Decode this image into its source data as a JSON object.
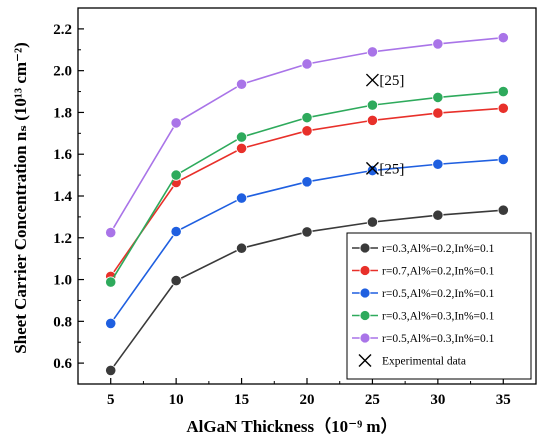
{
  "chart_data": {
    "type": "line",
    "x": [
      5,
      10,
      15,
      20,
      25,
      30,
      35
    ],
    "x_tick_labels": [
      "5",
      "10",
      "15",
      "20",
      "25",
      "30",
      "35"
    ],
    "y_tick_labels": [
      "0.6",
      "0.8",
      "1.0",
      "1.2",
      "1.4",
      "1.6",
      "1.8",
      "2.0",
      "2.2"
    ],
    "y_ticks": [
      0.6,
      0.8,
      1.0,
      1.2,
      1.4,
      1.6,
      1.8,
      2.0,
      2.2
    ],
    "xlim": [
      2.5,
      37.5
    ],
    "ylim": [
      0.5,
      2.3
    ],
    "xlabel": "AlGaN Thickness（10⁻⁹ m）",
    "ylabel": "Sheet Carrier Concentration nₛ (10¹³ cm⁻²)",
    "grid": false,
    "legend_placement": "bottom-right",
    "series": [
      {
        "name": "r=0.3,Al%=0.2,In%=0.1",
        "color": "#3a3a3a",
        "values": [
          0.565,
          0.995,
          1.15,
          1.228,
          1.275,
          1.308,
          1.332
        ]
      },
      {
        "name": "r=0.7,Al%=0.2,In%=0.1",
        "color": "#e8302a",
        "values": [
          1.015,
          1.465,
          1.628,
          1.712,
          1.762,
          1.797,
          1.82
        ]
      },
      {
        "name": "r=0.5,Al%=0.2,In%=0.1",
        "color": "#1f5fe0",
        "values": [
          0.79,
          1.23,
          1.39,
          1.468,
          1.522,
          1.552,
          1.575
        ]
      },
      {
        "name": "r=0.3,Al%=0.3,In%=0.1",
        "color": "#2eaa5c",
        "values": [
          0.988,
          1.5,
          1.682,
          1.775,
          1.835,
          1.872,
          1.9
        ]
      },
      {
        "name": "r=0.5,Al%=0.3,In%=0.1",
        "color": "#a974e8",
        "values": [
          1.225,
          1.75,
          1.935,
          2.032,
          2.09,
          2.128,
          2.158
        ]
      }
    ],
    "experimental": {
      "name": "Experimental data",
      "points": [
        {
          "x": 25,
          "y": 1.955,
          "label": "[25]"
        },
        {
          "x": 25,
          "y": 1.532,
          "label": "[25]"
        }
      ]
    }
  }
}
